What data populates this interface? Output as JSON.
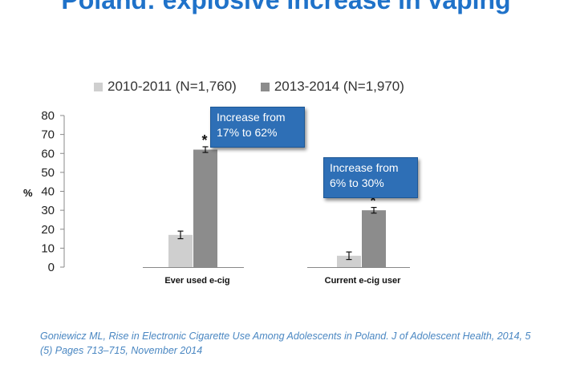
{
  "slide": {
    "title": "Poland: explosive increase in vaping",
    "citation": "Goniewicz ML, Rise in Electronic Cigarette Use Among Adolescents in Poland. J of Adolescent Health,  2014, 5 (5) Pages 713–715, November 2014"
  },
  "colors": {
    "title": "#1f72c9",
    "series1": "#cfcfcf",
    "series2": "#8c8c8c",
    "callout": "#2e6fb6"
  },
  "callouts": [
    {
      "text": "Increase from 17% to 62%"
    },
    {
      "text": "Increase from 6% to 30%"
    }
  ],
  "chart_data": {
    "type": "bar",
    "title": "",
    "ylabel": "%",
    "xlabel": "",
    "ylim": [
      0,
      80
    ],
    "yticks": [
      0,
      10,
      20,
      30,
      40,
      50,
      60,
      70,
      80
    ],
    "categories": [
      "Ever used e-cig",
      "Current e-cig user"
    ],
    "series": [
      {
        "name": "2010-2011 (N=1,760)",
        "values": [
          17,
          6
        ],
        "error": [
          2,
          2
        ]
      },
      {
        "name": "2013-2014 (N=1,970)",
        "values": [
          62,
          30
        ],
        "error": [
          1.5,
          1.5
        ]
      }
    ],
    "annotations": [
      "*",
      "*"
    ],
    "legend": "top"
  }
}
